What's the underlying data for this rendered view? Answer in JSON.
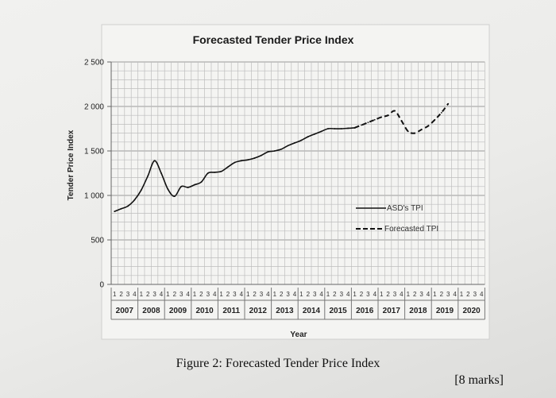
{
  "chart_data": {
    "type": "line",
    "title": "Forecasted Tender Price Index",
    "xlabel": "Year",
    "ylabel": "Tender Price Index",
    "ylim": [
      0,
      2500
    ],
    "yticks": [
      0,
      500,
      1000,
      1500,
      2000,
      2500
    ],
    "ytick_labels": [
      "0",
      "500",
      "1 000",
      "1 500",
      "2 000",
      "2 500"
    ],
    "years": [
      "2007",
      "2008",
      "2009",
      "2010",
      "2011",
      "2012",
      "2013",
      "2014",
      "2015",
      "2016",
      "2017",
      "2018",
      "2019",
      "2020"
    ],
    "quarters": [
      "1",
      "2",
      "3",
      "4"
    ],
    "grid": true,
    "legend_position": "right-middle",
    "series": [
      {
        "name": "ASD's TPI",
        "style": "solid",
        "values": [
          820,
          850,
          880,
          950,
          1060,
          1220,
          1390,
          1250,
          1070,
          990,
          1100,
          1090,
          1120,
          1150,
          1250,
          1260,
          1270,
          1320,
          1370,
          1390,
          1400,
          1420,
          1450,
          1490,
          1500,
          1520,
          1560,
          1590,
          1620,
          1660,
          1690,
          1720,
          1750,
          1750,
          1750,
          1755,
          1760
        ]
      },
      {
        "name": "Forecasted TPI",
        "style": "dashed",
        "start_index": 36,
        "values": [
          1760,
          1790,
          1820,
          1850,
          1880,
          1900,
          1950,
          1840,
          1720,
          1700,
          1740,
          1780,
          1850,
          1930,
          2030
        ]
      }
    ]
  },
  "caption": "Figure 2: Forecasted Tender Price Index",
  "marks": "[8 marks]"
}
